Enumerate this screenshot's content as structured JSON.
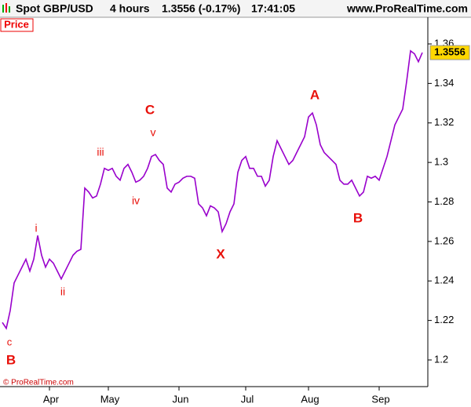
{
  "header": {
    "symbol": "Spot GBP/USD",
    "timeframe": "4 hours",
    "price": "1.3556 (-0.17%)",
    "time": "17:41:05",
    "site": "www.ProRealTime.com"
  },
  "chart_data": {
    "type": "line",
    "panel_label": "Price",
    "copyright": "© ProRealTime.com",
    "categories": [
      null,
      null,
      null,
      null,
      null,
      null,
      null,
      null,
      null,
      null,
      null,
      null,
      "Apr",
      null,
      null,
      null,
      null,
      null,
      null,
      null,
      null,
      null,
      null,
      null,
      null,
      null,
      null,
      "May",
      null,
      null,
      null,
      null,
      null,
      null,
      null,
      null,
      null,
      null,
      null,
      null,
      null,
      null,
      null,
      null,
      null,
      "Jun",
      null,
      null,
      null,
      null,
      null,
      null,
      null,
      null,
      null,
      null,
      null,
      null,
      null,
      null,
      null,
      null,
      "Jul",
      null,
      null,
      null,
      null,
      null,
      null,
      null,
      null,
      null,
      null,
      null,
      null,
      null,
      null,
      null,
      "Aug",
      null,
      null,
      null,
      null,
      null,
      null,
      null,
      null,
      null,
      null,
      null,
      null,
      null,
      null,
      null,
      null,
      null,
      "Sep",
      null,
      null,
      null,
      null,
      null,
      null,
      null,
      null,
      null,
      null,
      null
    ],
    "series": [
      {
        "name": "Spot GBP/USD",
        "color": "#9900cc",
        "values": [
          1.219,
          1.216,
          1.225,
          1.239,
          1.243,
          1.247,
          1.251,
          1.245,
          1.251,
          1.263,
          1.253,
          1.247,
          1.251,
          1.249,
          1.245,
          1.241,
          1.245,
          1.249,
          1.253,
          1.255,
          1.256,
          1.287,
          1.285,
          1.282,
          1.283,
          1.289,
          1.297,
          1.296,
          1.297,
          1.293,
          1.291,
          1.297,
          1.299,
          1.295,
          1.29,
          1.291,
          1.293,
          1.297,
          1.303,
          1.304,
          1.301,
          1.299,
          1.287,
          1.285,
          1.289,
          1.29,
          1.292,
          1.293,
          1.293,
          1.292,
          1.279,
          1.277,
          1.273,
          1.278,
          1.277,
          1.275,
          1.265,
          1.269,
          1.275,
          1.279,
          1.295,
          1.301,
          1.303,
          1.297,
          1.297,
          1.293,
          1.293,
          1.288,
          1.291,
          1.303,
          1.311,
          1.307,
          1.303,
          1.299,
          1.301,
          1.305,
          1.309,
          1.313,
          1.323,
          1.325,
          1.319,
          1.309,
          1.305,
          1.303,
          1.301,
          1.299,
          1.291,
          1.289,
          1.289,
          1.291,
          1.287,
          1.283,
          1.285,
          1.293,
          1.292,
          1.293,
          1.291,
          1.297,
          1.303,
          1.311,
          1.319,
          1.323,
          1.327,
          1.341,
          1.3565,
          1.355,
          1.351,
          1.3556
        ]
      }
    ],
    "last_value": 1.3556,
    "last_value_color": "#ffd700",
    "annotations": [
      "c",
      "B",
      "i",
      "ii",
      "iii",
      "C",
      "v",
      "iv",
      "X",
      "A",
      "B"
    ],
    "annotation_color": "#e8100a",
    "ylim": [
      1.1865,
      1.3735
    ],
    "yticks": [
      1.2,
      1.22,
      1.24,
      1.26,
      1.28,
      1.3,
      1.32,
      1.34,
      1.36
    ],
    "grid": false
  }
}
